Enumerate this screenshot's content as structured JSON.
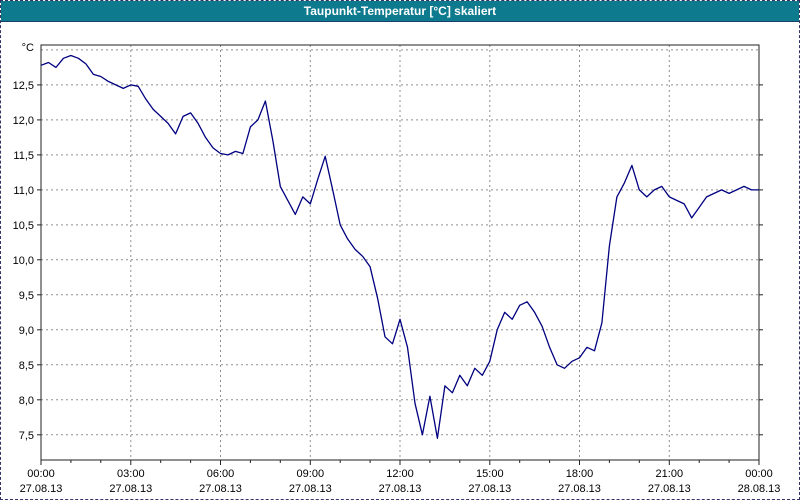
{
  "window": {
    "title": "Taupunkt-Temperatur [°C] skaliert"
  },
  "colors": {
    "titlebar_bg": "#0d7a8e",
    "title_text": "#ffffff",
    "line": "#000080",
    "grid": "#8f8f8f",
    "frame_border": "#333366"
  },
  "chart_data": {
    "type": "line",
    "title": "Taupunkt-Temperatur [°C] skaliert",
    "xlabel": "",
    "ylabel": "°C",
    "xlim": [
      0,
      24
    ],
    "ylim": [
      7.14,
      13.07
    ],
    "grid": "dashed",
    "legend": "none",
    "y_grid": [
      7.5,
      8.0,
      8.5,
      9.0,
      9.5,
      10.0,
      10.5,
      11.0,
      11.5,
      12.0,
      12.5,
      13.0
    ],
    "y_ticks": [
      {
        "value": 12.5,
        "label": "12,5"
      },
      {
        "value": 12.0,
        "label": "12,0"
      },
      {
        "value": 11.5,
        "label": "11,5"
      },
      {
        "value": 11.0,
        "label": "11,0"
      },
      {
        "value": 10.5,
        "label": "10,5"
      },
      {
        "value": 10.0,
        "label": "10,0"
      },
      {
        "value": 9.5,
        "label": "9,5"
      },
      {
        "value": 9.0,
        "label": "9,0"
      },
      {
        "value": 8.5,
        "label": "8,5"
      },
      {
        "value": 8.0,
        "label": "8,0"
      },
      {
        "value": 7.5,
        "label": "7,5"
      }
    ],
    "x_ticks": [
      {
        "hour": 0,
        "time": "00:00",
        "date": "27.08.13"
      },
      {
        "hour": 3,
        "time": "03:00",
        "date": "27.08.13"
      },
      {
        "hour": 6,
        "time": "06:00",
        "date": "27.08.13"
      },
      {
        "hour": 9,
        "time": "09:00",
        "date": "27.08.13"
      },
      {
        "hour": 12,
        "time": "12:00",
        "date": "27.08.13"
      },
      {
        "hour": 15,
        "time": "15:00",
        "date": "27.08.13"
      },
      {
        "hour": 18,
        "time": "18:00",
        "date": "27.08.13"
      },
      {
        "hour": 21,
        "time": "21:00",
        "date": "27.08.13"
      },
      {
        "hour": 24,
        "time": "00:00",
        "date": "28.08.13"
      }
    ],
    "series": [
      {
        "name": "Taupunkt-Temperatur",
        "color": "#000080",
        "x": [
          0,
          0.25,
          0.5,
          0.75,
          1,
          1.25,
          1.5,
          1.75,
          2,
          2.25,
          2.5,
          2.75,
          3,
          3.25,
          3.5,
          3.75,
          4,
          4.25,
          4.5,
          4.75,
          5,
          5.25,
          5.5,
          5.75,
          6,
          6.25,
          6.5,
          6.75,
          7,
          7.25,
          7.5,
          7.75,
          8,
          8.25,
          8.5,
          8.75,
          9,
          9.25,
          9.5,
          9.75,
          10,
          10.25,
          10.5,
          10.75,
          11,
          11.25,
          11.5,
          11.75,
          12,
          12.25,
          12.5,
          12.75,
          13,
          13.25,
          13.5,
          13.75,
          14,
          14.25,
          14.5,
          14.75,
          15,
          15.25,
          15.5,
          15.75,
          16,
          16.25,
          16.5,
          16.75,
          17,
          17.25,
          17.5,
          17.75,
          18,
          18.25,
          18.5,
          18.75,
          19,
          19.25,
          19.5,
          19.75,
          20,
          20.25,
          20.5,
          20.75,
          21,
          21.25,
          21.5,
          21.75,
          22,
          22.25,
          22.5,
          22.75,
          23,
          23.25,
          23.5,
          23.75,
          24
        ],
        "y": [
          12.78,
          12.82,
          12.75,
          12.88,
          12.92,
          12.88,
          12.8,
          12.65,
          12.62,
          12.55,
          12.5,
          12.45,
          12.5,
          12.48,
          12.3,
          12.15,
          12.05,
          11.95,
          11.8,
          12.05,
          12.1,
          11.95,
          11.75,
          11.6,
          11.52,
          11.5,
          11.55,
          11.52,
          11.9,
          12.0,
          12.27,
          11.7,
          11.05,
          10.85,
          10.65,
          10.9,
          10.8,
          11.15,
          11.48,
          11.0,
          10.5,
          10.3,
          10.15,
          10.05,
          9.9,
          9.45,
          8.9,
          8.8,
          9.15,
          8.75,
          7.95,
          7.5,
          8.05,
          7.45,
          8.2,
          8.1,
          8.35,
          8.2,
          8.45,
          8.35,
          8.55,
          9.0,
          9.25,
          9.15,
          9.35,
          9.4,
          9.25,
          9.05,
          8.75,
          8.5,
          8.45,
          8.55,
          8.6,
          8.75,
          8.7,
          9.1,
          10.2,
          10.9,
          11.1,
          11.35,
          11.0,
          10.9,
          11.0,
          11.05,
          10.9,
          10.85,
          10.8,
          10.6,
          10.75,
          10.9,
          10.95,
          11.0,
          10.95,
          11.0,
          11.05,
          11.0,
          11.0
        ]
      }
    ]
  }
}
